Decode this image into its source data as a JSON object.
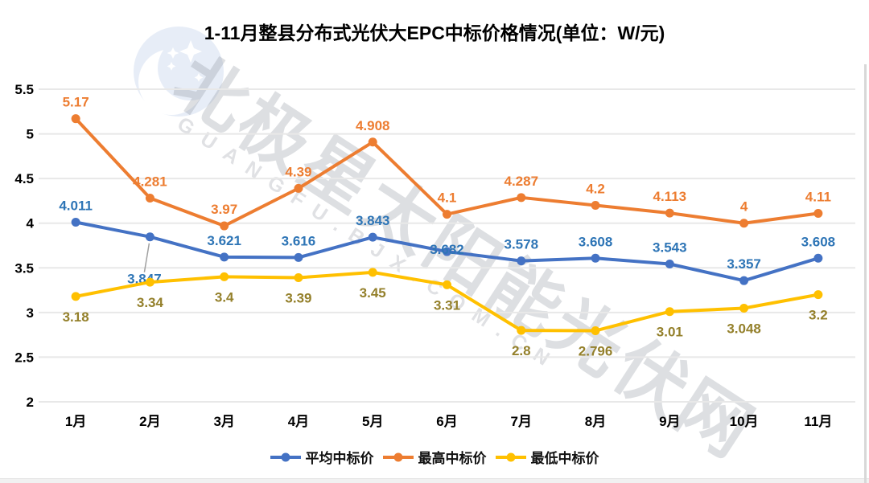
{
  "title": "1-11月整县分布式光伏大EPC中标价格情况(单位：W/元)",
  "watermark": {
    "cn": "北极星太阳能光伏网",
    "en": "GUANGFU.BJX.COM.CN"
  },
  "chart_data": {
    "type": "line",
    "title": "1-11月整县分布式光伏大EPC中标价格情况(单位：W/元)",
    "categories": [
      "1月",
      "2月",
      "3月",
      "4月",
      "5月",
      "6月",
      "7月",
      "8月",
      "9月",
      "10月",
      "11月"
    ],
    "series": [
      {
        "name": "平均中标价",
        "color": "#4472C4",
        "label_color": "#2E75B6",
        "values": [
          4.011,
          3.847,
          3.621,
          3.616,
          3.843,
          3.682,
          3.578,
          3.608,
          3.543,
          3.357,
          3.608
        ],
        "label_pos": "above"
      },
      {
        "name": "最高中标价",
        "color": "#ED7D31",
        "label_color": "#ED7D31",
        "values": [
          5.17,
          4.281,
          3.97,
          4.39,
          4.908,
          4.1,
          4.287,
          4.2,
          4.113,
          4,
          4.11
        ],
        "label_pos": "above"
      },
      {
        "name": "最低中标价",
        "color": "#FFC000",
        "label_color": "#94802B",
        "values": [
          3.18,
          3.34,
          3.4,
          3.39,
          3.45,
          3.31,
          2.8,
          2.796,
          3.01,
          3.048,
          3.2
        ],
        "label_pos": "below"
      }
    ],
    "xlabel": "",
    "ylabel": "",
    "ylim": [
      2,
      5.5
    ],
    "yticks": [
      2,
      2.5,
      3,
      3.5,
      4,
      4.5,
      5,
      5.5
    ],
    "grid": true,
    "legend_position": "bottom"
  }
}
